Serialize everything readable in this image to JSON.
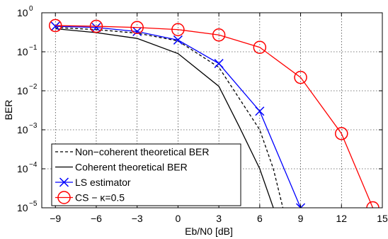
{
  "chart_data": {
    "type": "line",
    "title": "",
    "xlabel": "Eb/N0 [dB]",
    "ylabel": "BER",
    "xlim": [
      -10,
      15
    ],
    "ylim": [
      1e-05,
      1
    ],
    "yscale": "log",
    "grid": true,
    "legend_position": "bottom-left",
    "x_ticks": [
      -9,
      -6,
      -3,
      0,
      3,
      6,
      9,
      12,
      15
    ],
    "x_tick_labels": [
      "−9",
      "−6",
      "−3",
      "0",
      "3",
      "6",
      "9",
      "12",
      "15"
    ],
    "y_ticks": [
      0,
      -1,
      -2,
      -3,
      -4,
      -5
    ],
    "y_tick_labels": [
      "10",
      "10",
      "10",
      "10",
      "10",
      "10"
    ],
    "y_tick_exponents": [
      "0",
      "−1",
      "−2",
      "−3",
      "−4",
      "−5"
    ],
    "series": [
      {
        "name": "Non−coherent theoretical BER",
        "color": "#000000",
        "dash": "dashed",
        "marker": "none",
        "x": [
          -9,
          -6,
          -3,
          0,
          3,
          6,
          7,
          7.7
        ],
        "y": [
          0.42,
          0.37,
          0.3,
          0.19,
          0.04,
          0.001,
          0.0001,
          1e-05
        ]
      },
      {
        "name": "Coherent theoretical BER",
        "color": "#000000",
        "dash": "solid",
        "marker": "none",
        "x": [
          -9,
          -6,
          -3,
          0,
          3,
          4.5,
          6,
          7,
          7.6
        ],
        "y": [
          0.39,
          0.31,
          0.22,
          0.09,
          0.013,
          0.0012,
          0.0001,
          1e-05,
          1e-06
        ]
      },
      {
        "name": "LS estimator",
        "color": "#0000ff",
        "dash": "solid",
        "marker": "x",
        "x": [
          -9,
          -6,
          -3,
          0,
          3,
          6,
          9
        ],
        "y": [
          0.45,
          0.42,
          0.33,
          0.2,
          0.05,
          0.003,
          1e-05
        ]
      },
      {
        "name": "CS − κ=0.5",
        "color": "#ff0000",
        "dash": "solid",
        "marker": "o",
        "x": [
          -9,
          -6,
          -3,
          0,
          3,
          6,
          9,
          12,
          14.3
        ],
        "y": [
          0.47,
          0.45,
          0.42,
          0.37,
          0.27,
          0.13,
          0.022,
          0.0008,
          1e-05
        ]
      }
    ]
  }
}
